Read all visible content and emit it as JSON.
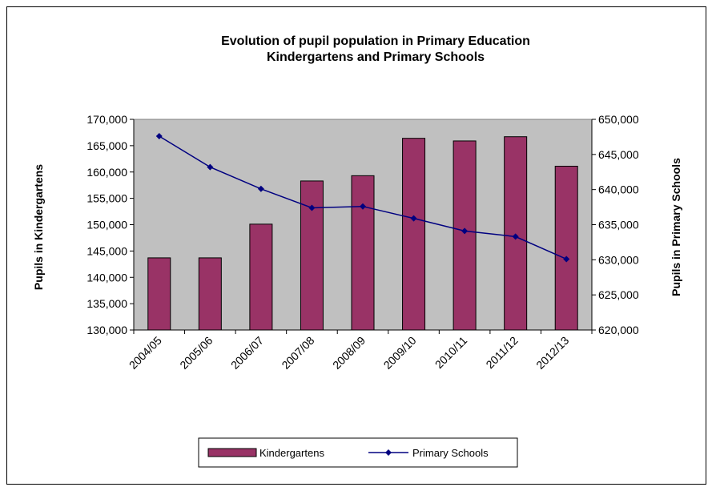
{
  "chart_data": {
    "type": "bar",
    "title_line1": "Evolution of pupil population in Primary Education",
    "title_line2": "Kindergartens and Primary Schools",
    "categories": [
      "2004/05",
      "2005/06",
      "2006/07",
      "2007/08",
      "2008/09",
      "2009/10",
      "2010/11",
      "2011/12",
      "2012/13"
    ],
    "series": [
      {
        "name": "Kindergartens",
        "type": "bar",
        "axis": "left",
        "values": [
          143700,
          143700,
          150100,
          158300,
          159300,
          166400,
          165900,
          166700,
          161100
        ]
      },
      {
        "name": "Primary Schools",
        "type": "line",
        "axis": "right",
        "values": [
          647600,
          643200,
          640100,
          637400,
          637600,
          635900,
          634100,
          633300,
          630100
        ]
      }
    ],
    "y_left": {
      "label": "Pupils in Kindergartens",
      "min": 130000,
      "max": 170000,
      "step": 5000,
      "ticks": [
        "130,000",
        "135,000",
        "140,000",
        "145,000",
        "150,000",
        "155,000",
        "160,000",
        "165,000",
        "170,000"
      ]
    },
    "y_right": {
      "label": "Pupils in Primary Schools",
      "min": 620000,
      "max": 650000,
      "step": 5000,
      "ticks": [
        "620,000",
        "625,000",
        "630,000",
        "635,000",
        "640,000",
        "645,000",
        "650,000"
      ]
    },
    "legend": {
      "position": "bottom"
    },
    "colors": {
      "bar": "#993366",
      "line": "#000080",
      "plot_bg": "#c0c0c0"
    }
  }
}
